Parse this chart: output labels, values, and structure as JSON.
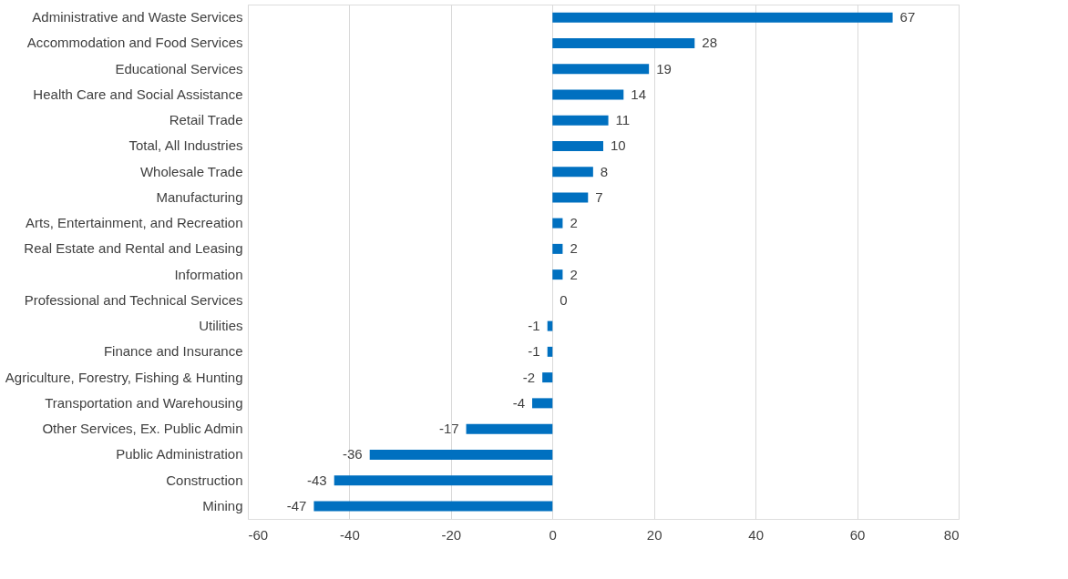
{
  "chart_data": {
    "type": "bar",
    "orientation": "horizontal",
    "categories": [
      "Administrative and Waste Services",
      "Accommodation and Food Services",
      "Educational Services",
      "Health Care and Social Assistance",
      "Retail Trade",
      "Total, All Industries",
      "Wholesale Trade",
      "Manufacturing",
      "Arts, Entertainment, and Recreation",
      "Real Estate and Rental and Leasing",
      "Information",
      "Professional and Technical Services",
      "Utilities",
      "Finance and Insurance",
      "Agriculture, Forestry, Fishing & Hunting",
      "Transportation and Warehousing",
      "Other Services, Ex. Public Admin",
      "Public Administration",
      "Construction",
      "Mining"
    ],
    "values": [
      67,
      28,
      19,
      14,
      11,
      10,
      8,
      7,
      2,
      2,
      2,
      0,
      -1,
      -1,
      -2,
      -4,
      -17,
      -36,
      -43,
      -47
    ],
    "color": "#0070c0",
    "xlim": [
      -60,
      80
    ],
    "xticks": [
      -60,
      -40,
      -20,
      0,
      20,
      40,
      60,
      80
    ],
    "grid": "x",
    "data_labels": true
  }
}
